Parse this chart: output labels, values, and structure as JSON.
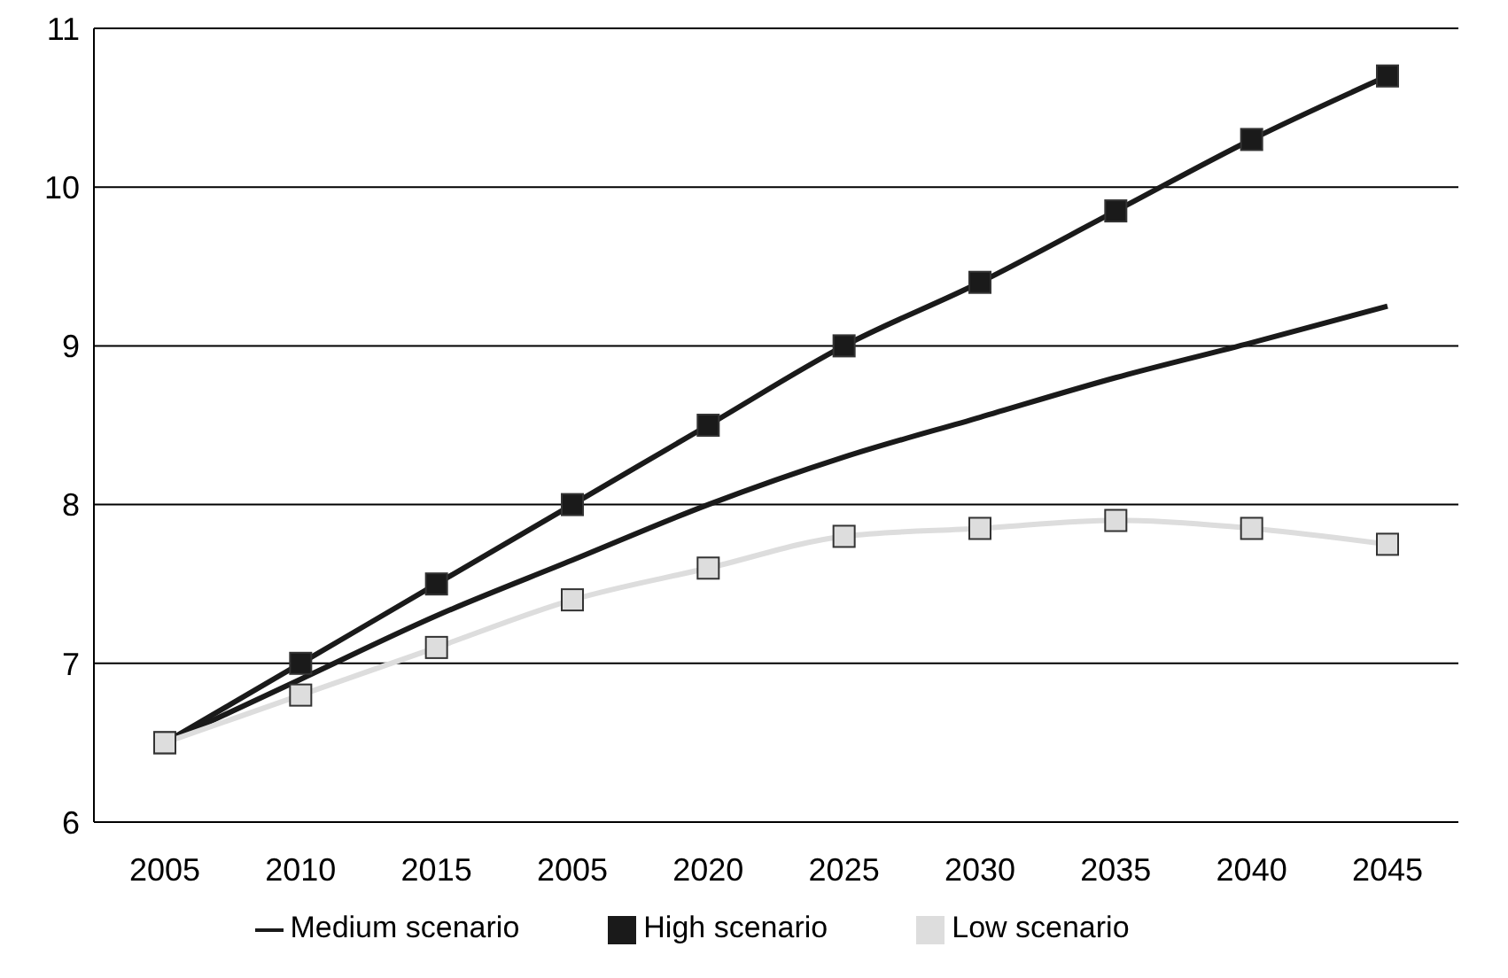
{
  "chart_data": {
    "type": "line",
    "categories": [
      "2005",
      "2010",
      "2015",
      "2005",
      "2020",
      "2025",
      "2030",
      "2035",
      "2040",
      "2045"
    ],
    "series": [
      {
        "name": "Medium scenario",
        "color": "#1a1a1a",
        "marker": "none",
        "values": [
          6.5,
          6.9,
          7.3,
          7.65,
          8.0,
          8.3,
          8.55,
          8.8,
          9.02,
          9.25
        ]
      },
      {
        "name": "High scenario",
        "color": "#1a1a1a",
        "marker": "square",
        "values": [
          6.5,
          7.0,
          7.5,
          8.0,
          8.5,
          9.0,
          9.4,
          9.85,
          10.3,
          10.7
        ]
      },
      {
        "name": "Low scenario",
        "color": "#dddddd",
        "marker": "square",
        "values": [
          6.5,
          6.8,
          7.1,
          7.4,
          7.6,
          7.8,
          7.85,
          7.9,
          7.85,
          7.75
        ]
      }
    ],
    "ylim": [
      6,
      11
    ],
    "yticks": [
      6,
      7,
      8,
      9,
      10,
      11
    ],
    "grid": "y",
    "legend": "bottom"
  }
}
